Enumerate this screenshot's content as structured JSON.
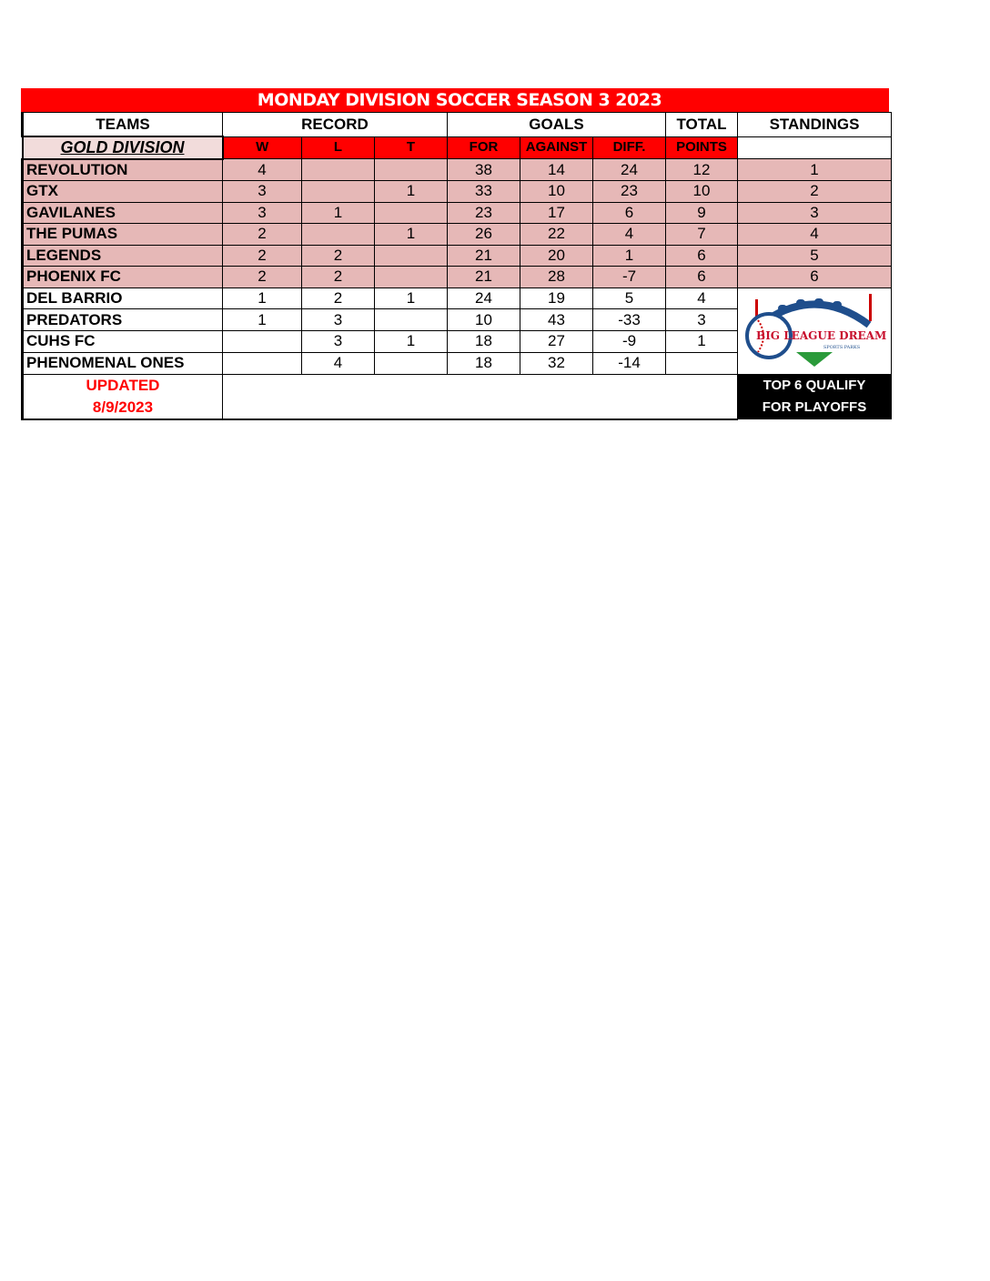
{
  "title": "MONDAY DIVISION SOCCER SEASON 3 2023",
  "headers": {
    "teams": "TEAMS",
    "record": "RECORD",
    "goals": "GOALS",
    "total": "TOTAL",
    "standings": "STANDINGS"
  },
  "subheaders": {
    "division": "GOLD DIVISION",
    "w": "W",
    "l": "L",
    "t": "T",
    "for": "FOR",
    "against": "AGAINST",
    "diff": "DIFF.",
    "points": "POINTS"
  },
  "rows": [
    {
      "team": "REVOLUTION",
      "w": "4",
      "l": "",
      "t": "",
      "for": "38",
      "against": "14",
      "diff": "24",
      "points": "12",
      "standing": "1"
    },
    {
      "team": "GTX",
      "w": "3",
      "l": "",
      "t": "1",
      "for": "33",
      "against": "10",
      "diff": "23",
      "points": "10",
      "standing": "2"
    },
    {
      "team": "GAVILANES",
      "w": "3",
      "l": "1",
      "t": "",
      "for": "23",
      "against": "17",
      "diff": "6",
      "points": "9",
      "standing": "3"
    },
    {
      "team": "THE PUMAS",
      "w": "2",
      "l": "",
      "t": "1",
      "for": "26",
      "against": "22",
      "diff": "4",
      "points": "7",
      "standing": "4"
    },
    {
      "team": "LEGENDS",
      "w": "2",
      "l": "2",
      "t": "",
      "for": "21",
      "against": "20",
      "diff": "1",
      "points": "6",
      "standing": "5"
    },
    {
      "team": "PHOENIX FC",
      "w": "2",
      "l": "2",
      "t": "",
      "for": "21",
      "against": "28",
      "diff": "-7",
      "points": "6",
      "standing": "6"
    },
    {
      "team": "DEL BARRIO",
      "w": "1",
      "l": "2",
      "t": "1",
      "for": "24",
      "against": "19",
      "diff": "5",
      "points": "4"
    },
    {
      "team": "PREDATORS",
      "w": "1",
      "l": "3",
      "t": "",
      "for": "10",
      "against": "43",
      "diff": "-33",
      "points": "3"
    },
    {
      "team": "CUHS FC",
      "w": "",
      "l": "3",
      "t": "1",
      "for": "18",
      "against": "27",
      "diff": "-9",
      "points": "1"
    },
    {
      "team": "PHENOMENAL ONES",
      "w": "",
      "l": "4",
      "t": "",
      "for": "18",
      "against": "32",
      "diff": "-14",
      "points": ""
    }
  ],
  "logo": {
    "text": "BIG LEAGUE DREAMS",
    "subtext": "SPORTS PARKS"
  },
  "footer": {
    "updated_label": "UPDATED",
    "updated_date": "8/9/2023",
    "note_line1": "TOP 6 QUALIFY",
    "note_line2": "FOR PLAYOFFS"
  },
  "colors": {
    "header_red": "#ff0000",
    "playoff_row": "#e6b8b7",
    "updated_text": "#ff0000"
  }
}
